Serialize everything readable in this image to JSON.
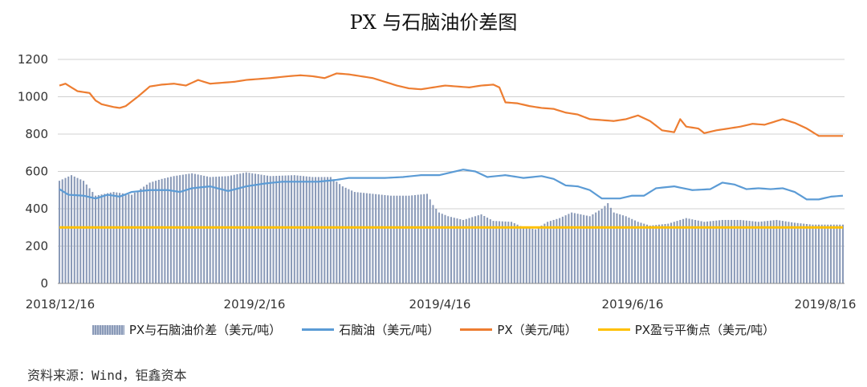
{
  "chart_data": {
    "type": "bar+line",
    "title": "PX 与石脑油价差图",
    "y_ticks": [
      "0",
      "200",
      "400",
      "600",
      "800",
      "1000",
      "1200"
    ],
    "ylim": [
      0,
      1200
    ],
    "x_ticks": [
      "2018/12/16",
      "2019/2/16",
      "2019/4/16",
      "2019/6/16",
      "2019/8/16"
    ],
    "grid": "horizontal",
    "legend_position": "bottom",
    "series": [
      {
        "name": "PX与石脑油价差（美元/吨）",
        "type": "bar",
        "color": "#8a9ab8",
        "keyframes": [
          [
            0,
            550
          ],
          [
            4,
            580
          ],
          [
            8,
            550
          ],
          [
            12,
            470
          ],
          [
            18,
            490
          ],
          [
            24,
            475
          ],
          [
            30,
            540
          ],
          [
            34,
            560
          ],
          [
            38,
            575
          ],
          [
            44,
            590
          ],
          [
            50,
            570
          ],
          [
            56,
            575
          ],
          [
            62,
            595
          ],
          [
            70,
            575
          ],
          [
            78,
            580
          ],
          [
            84,
            570
          ],
          [
            90,
            570
          ],
          [
            94,
            520
          ],
          [
            98,
            490
          ],
          [
            104,
            480
          ],
          [
            110,
            470
          ],
          [
            116,
            470
          ],
          [
            122,
            480
          ],
          [
            124,
            420
          ],
          [
            126,
            380
          ],
          [
            129,
            360
          ],
          [
            134,
            340
          ],
          [
            140,
            370
          ],
          [
            144,
            335
          ],
          [
            150,
            330
          ],
          [
            154,
            300
          ],
          [
            158,
            290
          ],
          [
            162,
            330
          ],
          [
            166,
            350
          ],
          [
            170,
            380
          ],
          [
            176,
            360
          ],
          [
            180,
            400
          ],
          [
            182,
            430
          ],
          [
            184,
            380
          ],
          [
            188,
            360
          ],
          [
            192,
            330
          ],
          [
            196,
            310
          ],
          [
            202,
            320
          ],
          [
            208,
            350
          ],
          [
            214,
            330
          ],
          [
            220,
            340
          ],
          [
            226,
            340
          ],
          [
            232,
            330
          ],
          [
            238,
            340
          ],
          [
            244,
            325
          ],
          [
            250,
            315
          ]
        ]
      },
      {
        "name": "石脑油（美元/吨）",
        "type": "line",
        "color": "#5b9bd5",
        "keyframes": [
          [
            0,
            505
          ],
          [
            3,
            475
          ],
          [
            8,
            470
          ],
          [
            12,
            455
          ],
          [
            16,
            475
          ],
          [
            20,
            465
          ],
          [
            24,
            490
          ],
          [
            30,
            500
          ],
          [
            36,
            500
          ],
          [
            40,
            490
          ],
          [
            44,
            510
          ],
          [
            50,
            520
          ],
          [
            56,
            495
          ],
          [
            62,
            520
          ],
          [
            68,
            535
          ],
          [
            74,
            545
          ],
          [
            80,
            545
          ],
          [
            86,
            545
          ],
          [
            92,
            555
          ],
          [
            96,
            565
          ],
          [
            102,
            565
          ],
          [
            108,
            565
          ],
          [
            114,
            570
          ],
          [
            120,
            580
          ],
          [
            126,
            580
          ],
          [
            130,
            595
          ],
          [
            134,
            610
          ],
          [
            138,
            600
          ],
          [
            142,
            570
          ],
          [
            148,
            580
          ],
          [
            154,
            565
          ],
          [
            160,
            575
          ],
          [
            164,
            560
          ],
          [
            168,
            525
          ],
          [
            172,
            520
          ],
          [
            176,
            500
          ],
          [
            180,
            455
          ],
          [
            186,
            455
          ],
          [
            190,
            470
          ],
          [
            194,
            470
          ],
          [
            198,
            510
          ],
          [
            204,
            520
          ],
          [
            210,
            500
          ],
          [
            216,
            505
          ],
          [
            220,
            540
          ],
          [
            224,
            530
          ],
          [
            228,
            505
          ],
          [
            232,
            510
          ],
          [
            236,
            505
          ],
          [
            240,
            510
          ],
          [
            244,
            490
          ],
          [
            248,
            450
          ],
          [
            252,
            450
          ],
          [
            256,
            465
          ],
          [
            260,
            470
          ]
        ]
      },
      {
        "name": "PX（美元/吨）",
        "type": "line",
        "color": "#ed7d31",
        "keyframes": [
          [
            0,
            1060
          ],
          [
            2,
            1070
          ],
          [
            6,
            1030
          ],
          [
            10,
            1020
          ],
          [
            12,
            980
          ],
          [
            14,
            960
          ],
          [
            18,
            945
          ],
          [
            20,
            940
          ],
          [
            22,
            950
          ],
          [
            26,
            1000
          ],
          [
            30,
            1055
          ],
          [
            34,
            1065
          ],
          [
            38,
            1070
          ],
          [
            42,
            1060
          ],
          [
            46,
            1090
          ],
          [
            50,
            1070
          ],
          [
            54,
            1075
          ],
          [
            58,
            1080
          ],
          [
            62,
            1090
          ],
          [
            66,
            1095
          ],
          [
            70,
            1100
          ],
          [
            76,
            1110
          ],
          [
            80,
            1115
          ],
          [
            84,
            1110
          ],
          [
            88,
            1100
          ],
          [
            92,
            1125
          ],
          [
            96,
            1120
          ],
          [
            100,
            1110
          ],
          [
            104,
            1100
          ],
          [
            108,
            1080
          ],
          [
            112,
            1060
          ],
          [
            116,
            1045
          ],
          [
            120,
            1040
          ],
          [
            124,
            1050
          ],
          [
            128,
            1060
          ],
          [
            132,
            1055
          ],
          [
            136,
            1050
          ],
          [
            140,
            1060
          ],
          [
            144,
            1065
          ],
          [
            146,
            1050
          ],
          [
            148,
            970
          ],
          [
            152,
            965
          ],
          [
            156,
            950
          ],
          [
            160,
            940
          ],
          [
            164,
            935
          ],
          [
            168,
            915
          ],
          [
            172,
            905
          ],
          [
            176,
            880
          ],
          [
            180,
            875
          ],
          [
            184,
            870
          ],
          [
            188,
            880
          ],
          [
            192,
            900
          ],
          [
            196,
            870
          ],
          [
            200,
            820
          ],
          [
            204,
            810
          ],
          [
            206,
            880
          ],
          [
            208,
            840
          ],
          [
            212,
            830
          ],
          [
            214,
            805
          ],
          [
            218,
            820
          ],
          [
            222,
            830
          ],
          [
            226,
            840
          ],
          [
            230,
            855
          ],
          [
            234,
            850
          ],
          [
            236,
            860
          ],
          [
            240,
            880
          ],
          [
            244,
            860
          ],
          [
            248,
            830
          ],
          [
            252,
            790
          ],
          [
            256,
            790
          ],
          [
            260,
            790
          ]
        ]
      },
      {
        "name": "PX盈亏平衡点（美元/吨）",
        "type": "line",
        "color": "#ffc000",
        "keyframes": [
          [
            0,
            300
          ],
          [
            260,
            300
          ]
        ]
      }
    ]
  },
  "source_note": "资料来源：Wind，钜鑫资本"
}
